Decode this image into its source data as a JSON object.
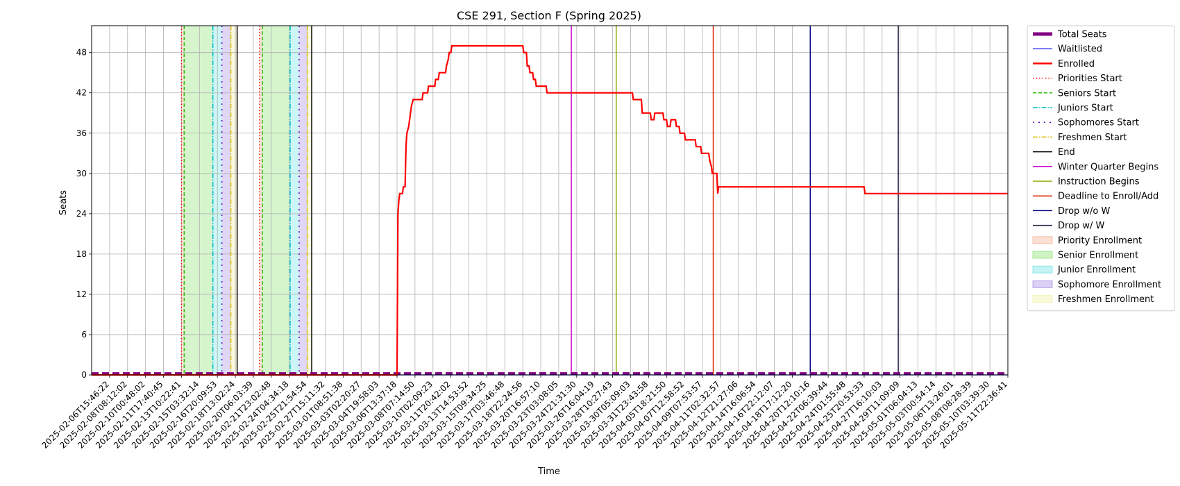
{
  "chart_data": {
    "type": "line",
    "title": "CSE 291, Section F (Spring 2025)",
    "xlabel": "Time",
    "ylabel": "Seats",
    "ylim": [
      0,
      52
    ],
    "yticks": [
      0,
      6,
      12,
      18,
      24,
      30,
      36,
      42,
      48
    ],
    "grid": true,
    "legend_position": "outside-right",
    "x_ticks": [
      "2025-02-06T15:46:22",
      "2025-02-08T08:12:02",
      "2025-02-10T00:48:02",
      "2025-02-11T17:40:45",
      "2025-02-13T10:22:41",
      "2025-02-15T03:32:14",
      "2025-02-16T20:09:53",
      "2025-02-18T13:02:24",
      "2025-02-20T06:03:39",
      "2025-02-21T23:02:48",
      "2025-02-24T04:34:18",
      "2025-02-25T21:54:54",
      "2025-02-27T15:11:32",
      "2025-03-01T08:51:38",
      "2025-03-03T02:20:27",
      "2025-03-04T19:58:03",
      "2025-03-06T13:37:18",
      "2025-03-08T07:14:50",
      "2025-03-10T02:09:23",
      "2025-03-11T20:42:02",
      "2025-03-13T14:53:52",
      "2025-03-15T09:34:25",
      "2025-03-17T03:46:48",
      "2025-03-18T22:24:56",
      "2025-03-20T16:57:10",
      "2025-03-23T03:08:05",
      "2025-03-24T21:31:30",
      "2025-03-26T16:04:19",
      "2025-03-28T10:27:43",
      "2025-03-30T05:09:03",
      "2025-03-31T23:43:58",
      "2025-04-05T18:21:50",
      "2025-04-07T12:58:52",
      "2025-04-09T07:53:57",
      "2025-04-11T02:32:57",
      "2025-04-12T21:27:06",
      "2025-04-14T16:06:54",
      "2025-04-16T22:12:07",
      "2025-04-18T17:12:20",
      "2025-04-20T12:10:16",
      "2025-04-22T06:39:44",
      "2025-04-24T01:55:48",
      "2025-04-25T20:53:33",
      "2025-04-27T16:10:03",
      "2025-04-29T11:09:09",
      "2025-05-01T06:04:13",
      "2025-05-03T00:54:14",
      "2025-05-06T13:26:01",
      "2025-05-08T08:28:39",
      "2025-05-10T03:39:30",
      "2025-05-11T22:36:41"
    ],
    "x_range_index": [
      -1.0,
      50.0
    ],
    "series": [
      {
        "name": "Total Seats",
        "color": "#800080",
        "style": "dashed-thick",
        "points": [
          [
            -1.0,
            0.2
          ],
          [
            50.0,
            0.2
          ]
        ]
      },
      {
        "name": "Waitlisted",
        "color": "#0000ff",
        "style": "solid",
        "points": [
          [
            -1.0,
            0
          ],
          [
            50.0,
            0
          ]
        ]
      },
      {
        "name": "Enrolled",
        "color": "#ff0000",
        "style": "step",
        "points": [
          [
            -1.0,
            0
          ],
          [
            16.0,
            0
          ],
          [
            16.05,
            24
          ],
          [
            16.1,
            26
          ],
          [
            16.15,
            27
          ],
          [
            16.3,
            27
          ],
          [
            16.35,
            28
          ],
          [
            16.45,
            28
          ],
          [
            16.5,
            34
          ],
          [
            16.55,
            36
          ],
          [
            16.65,
            37
          ],
          [
            16.7,
            38
          ],
          [
            16.75,
            39
          ],
          [
            16.8,
            40
          ],
          [
            16.9,
            41
          ],
          [
            17.4,
            41
          ],
          [
            17.45,
            42
          ],
          [
            17.7,
            42
          ],
          [
            17.75,
            43
          ],
          [
            18.1,
            43
          ],
          [
            18.15,
            44
          ],
          [
            18.3,
            44
          ],
          [
            18.35,
            45
          ],
          [
            18.7,
            45
          ],
          [
            18.75,
            46
          ],
          [
            18.85,
            47
          ],
          [
            18.9,
            48
          ],
          [
            19.0,
            48
          ],
          [
            19.05,
            49
          ],
          [
            23.0,
            49
          ],
          [
            23.05,
            48
          ],
          [
            23.2,
            48
          ],
          [
            23.25,
            46
          ],
          [
            23.35,
            46
          ],
          [
            23.4,
            45
          ],
          [
            23.55,
            45
          ],
          [
            23.6,
            44
          ],
          [
            23.7,
            44
          ],
          [
            23.75,
            43
          ],
          [
            24.3,
            43
          ],
          [
            24.35,
            42
          ],
          [
            29.1,
            42
          ],
          [
            29.15,
            41
          ],
          [
            29.6,
            41
          ],
          [
            29.65,
            39
          ],
          [
            30.1,
            39
          ],
          [
            30.15,
            38
          ],
          [
            30.3,
            38
          ],
          [
            30.35,
            39
          ],
          [
            30.8,
            39
          ],
          [
            30.85,
            38
          ],
          [
            31.0,
            38
          ],
          [
            31.05,
            37
          ],
          [
            31.2,
            37
          ],
          [
            31.25,
            38
          ],
          [
            31.5,
            38
          ],
          [
            31.55,
            37
          ],
          [
            31.7,
            37
          ],
          [
            31.75,
            36
          ],
          [
            32.0,
            36
          ],
          [
            32.05,
            35
          ],
          [
            32.6,
            35
          ],
          [
            32.65,
            34
          ],
          [
            32.9,
            34
          ],
          [
            32.95,
            33
          ],
          [
            33.35,
            33
          ],
          [
            33.4,
            32
          ],
          [
            33.5,
            31
          ],
          [
            33.55,
            30
          ],
          [
            33.8,
            30
          ],
          [
            33.85,
            27
          ],
          [
            33.9,
            28
          ],
          [
            42.0,
            28
          ],
          [
            42.05,
            27
          ],
          [
            50.0,
            27
          ]
        ]
      }
    ],
    "events": [
      {
        "name": "Priorities Start",
        "color": "#ff0000",
        "style": "dotted",
        "x": [
          4.0,
          8.35
        ]
      },
      {
        "name": "Seniors Start",
        "color": "#22bb00",
        "style": "dashed",
        "x": [
          4.15,
          8.5
        ]
      },
      {
        "name": "Juniors Start",
        "color": "#00bbcc",
        "style": "dashdot",
        "x": [
          5.75,
          10.05
        ]
      },
      {
        "name": "Sophomores Start",
        "color": "#6600cc",
        "style": "dashdot2",
        "x": [
          6.25,
          10.55
        ]
      },
      {
        "name": "Freshmen Start",
        "color": "#ddbb00",
        "style": "dashdot",
        "x": [
          6.75,
          11.0
        ]
      },
      {
        "name": "End",
        "color": "#000000",
        "style": "solid",
        "x": [
          7.1,
          11.25
        ]
      },
      {
        "name": "Winter Quarter Begins",
        "color": "#cc00cc",
        "style": "solid",
        "x": [
          25.7
        ]
      },
      {
        "name": "Instruction Begins",
        "color": "#88aa00",
        "style": "solid",
        "x": [
          28.2
        ]
      },
      {
        "name": "Deadline to Enroll/Add",
        "color": "#dd2200",
        "style": "solid",
        "x": [
          33.6
        ]
      },
      {
        "name": "Drop w/o W",
        "color": "#000080",
        "style": "solid",
        "x": [
          39.0
        ]
      },
      {
        "name": "Drop w/ W",
        "color": "#222244",
        "style": "solid",
        "x": [
          43.9
        ]
      }
    ],
    "spans": [
      {
        "name": "Priority Enrollment",
        "color": "#f4a582",
        "ranges": [
          [
            4.0,
            4.15
          ],
          [
            8.35,
            8.5
          ]
        ]
      },
      {
        "name": "Senior Enrollment",
        "color": "#77dd55",
        "ranges": [
          [
            4.15,
            5.75
          ],
          [
            8.5,
            10.05
          ]
        ]
      },
      {
        "name": "Junior Enrollment",
        "color": "#55dddd",
        "ranges": [
          [
            5.75,
            6.25
          ],
          [
            10.05,
            10.55
          ]
        ]
      },
      {
        "name": "Sophomore Enrollment",
        "color": "#9977dd",
        "ranges": [
          [
            6.25,
            6.75
          ],
          [
            10.55,
            11.0
          ]
        ]
      },
      {
        "name": "Freshmen Enrollment",
        "color": "#eeee99",
        "ranges": [
          [
            6.75,
            7.1
          ],
          [
            11.0,
            11.25
          ]
        ]
      }
    ],
    "legend": [
      "Total Seats",
      "Waitlisted",
      "Enrolled",
      "Priorities Start",
      "Seniors Start",
      "Juniors Start",
      "Sophomores Start",
      "Freshmen Start",
      "End",
      "Winter Quarter Begins",
      "Instruction Begins",
      "Deadline to Enroll/Add",
      "Drop w/o W",
      "Drop w/ W",
      "Priority Enrollment",
      "Senior Enrollment",
      "Junior Enrollment",
      "Sophomore Enrollment",
      "Freshmen Enrollment"
    ]
  }
}
